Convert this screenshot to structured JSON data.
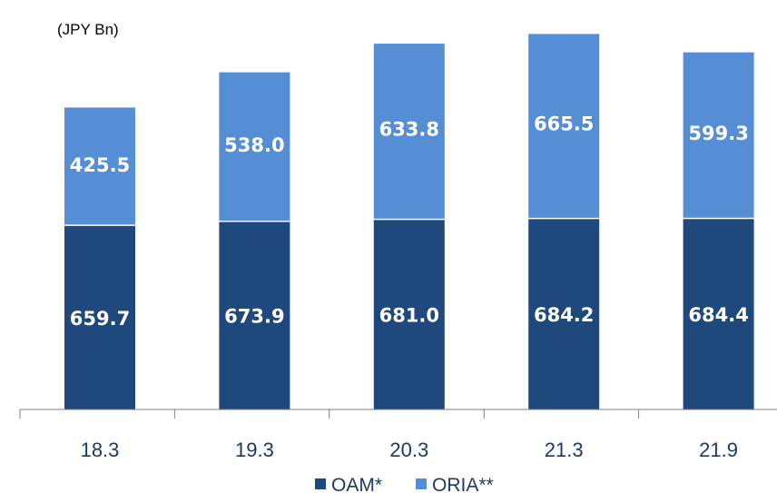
{
  "chart_data": {
    "type": "bar",
    "stacked": true,
    "unit_label": "(JPY Bn)",
    "categories": [
      "18.3",
      "19.3",
      "20.3",
      "21.3",
      "21.9"
    ],
    "series": [
      {
        "name": "OAM*",
        "color": "#1f497d",
        "values": [
          659.7,
          673.9,
          681.0,
          684.2,
          684.4
        ],
        "labels": [
          "659.7",
          "673.9",
          "681.0",
          "684.2",
          "684.4"
        ]
      },
      {
        "name": "ORIA**",
        "color": "#558ed5",
        "values": [
          425.5,
          538.0,
          633.8,
          665.5,
          599.3
        ],
        "labels": [
          "425.5",
          "538.0",
          "633.8",
          "665.5",
          "599.3"
        ]
      }
    ],
    "ylim": [
      0,
      1400
    ],
    "grid": false,
    "legend_position": "bottom-center"
  }
}
